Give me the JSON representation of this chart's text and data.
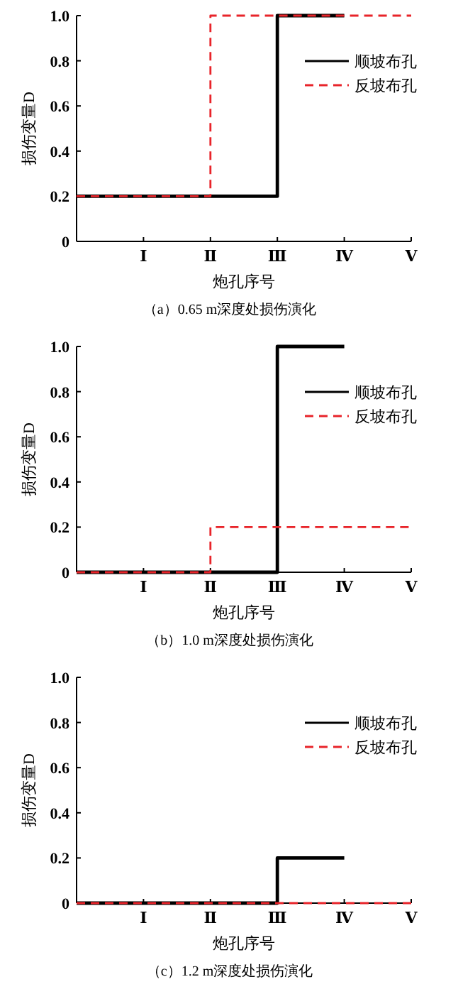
{
  "chart_data": [
    {
      "type": "step",
      "title": "（a）0.65 m深度处损伤演化",
      "xlabel": "炮孔序号",
      "ylabel": "损伤变量D",
      "categories": [
        null,
        "Ⅰ",
        "Ⅱ",
        "Ⅲ",
        "Ⅳ",
        "Ⅴ"
      ],
      "ylim": [
        0,
        1
      ],
      "yticks": [
        {
          "value": 0,
          "label": "0"
        },
        {
          "value": 0.2,
          "label": "0.2"
        },
        {
          "value": 0.4,
          "label": "0.4"
        },
        {
          "value": 0.6,
          "label": "0.6"
        },
        {
          "value": 0.8,
          "label": "0.8"
        },
        {
          "value": 1,
          "label": "1.0"
        }
      ],
      "legend": "top right",
      "grid": false,
      "series": [
        {
          "name": "顺坡布孔",
          "color": "#000000",
          "line_style": "solid",
          "values": [
            0.2,
            0.2,
            0.2,
            1,
            1,
            null
          ]
        },
        {
          "name": "反坡布孔",
          "color": "#e8242a",
          "line_style": "dashed",
          "values": [
            0.2,
            0.2,
            1,
            1,
            1,
            1
          ]
        }
      ]
    },
    {
      "type": "step",
      "title": "（b）1.0 m深度处损伤演化",
      "xlabel": "炮孔序号",
      "ylabel": "损伤变量D",
      "categories": [
        null,
        "Ⅰ",
        "Ⅱ",
        "Ⅲ",
        "Ⅳ",
        "Ⅴ"
      ],
      "ylim": [
        0,
        1
      ],
      "yticks": [
        {
          "value": 0,
          "label": "0"
        },
        {
          "value": 0.2,
          "label": "0.2"
        },
        {
          "value": 0.4,
          "label": "0.4"
        },
        {
          "value": 0.6,
          "label": "0.6"
        },
        {
          "value": 0.8,
          "label": "0.8"
        },
        {
          "value": 1,
          "label": "1.0"
        }
      ],
      "legend": "top right",
      "grid": false,
      "series": [
        {
          "name": "顺坡布孔",
          "color": "#000000",
          "line_style": "solid",
          "values": [
            0,
            0,
            0,
            1,
            1,
            null
          ]
        },
        {
          "name": "反坡布孔",
          "color": "#e8242a",
          "line_style": "dashed",
          "values": [
            0,
            0,
            0.2,
            0.2,
            0.2,
            0.2
          ]
        }
      ]
    },
    {
      "type": "step",
      "title": "（c）1.2 m深度处损伤演化",
      "xlabel": "炮孔序号",
      "ylabel": "损伤变量D",
      "categories": [
        null,
        "Ⅰ",
        "Ⅱ",
        "Ⅲ",
        "Ⅳ",
        "Ⅴ"
      ],
      "ylim": [
        0,
        1
      ],
      "yticks": [
        {
          "value": 0,
          "label": "0"
        },
        {
          "value": 0.2,
          "label": "0.2"
        },
        {
          "value": 0.4,
          "label": "0.4"
        },
        {
          "value": 0.6,
          "label": "0.6"
        },
        {
          "value": 0.8,
          "label": "0.8"
        },
        {
          "value": 1,
          "label": "1.0"
        }
      ],
      "legend": "top right",
      "grid": false,
      "series": [
        {
          "name": "顺坡布孔",
          "color": "#000000",
          "line_style": "solid",
          "values": [
            0,
            0,
            0,
            0.2,
            0.2,
            null
          ]
        },
        {
          "name": "反坡布孔",
          "color": "#e8242a",
          "line_style": "dashed",
          "values": [
            0,
            0,
            0,
            0,
            0,
            0
          ]
        }
      ]
    }
  ]
}
